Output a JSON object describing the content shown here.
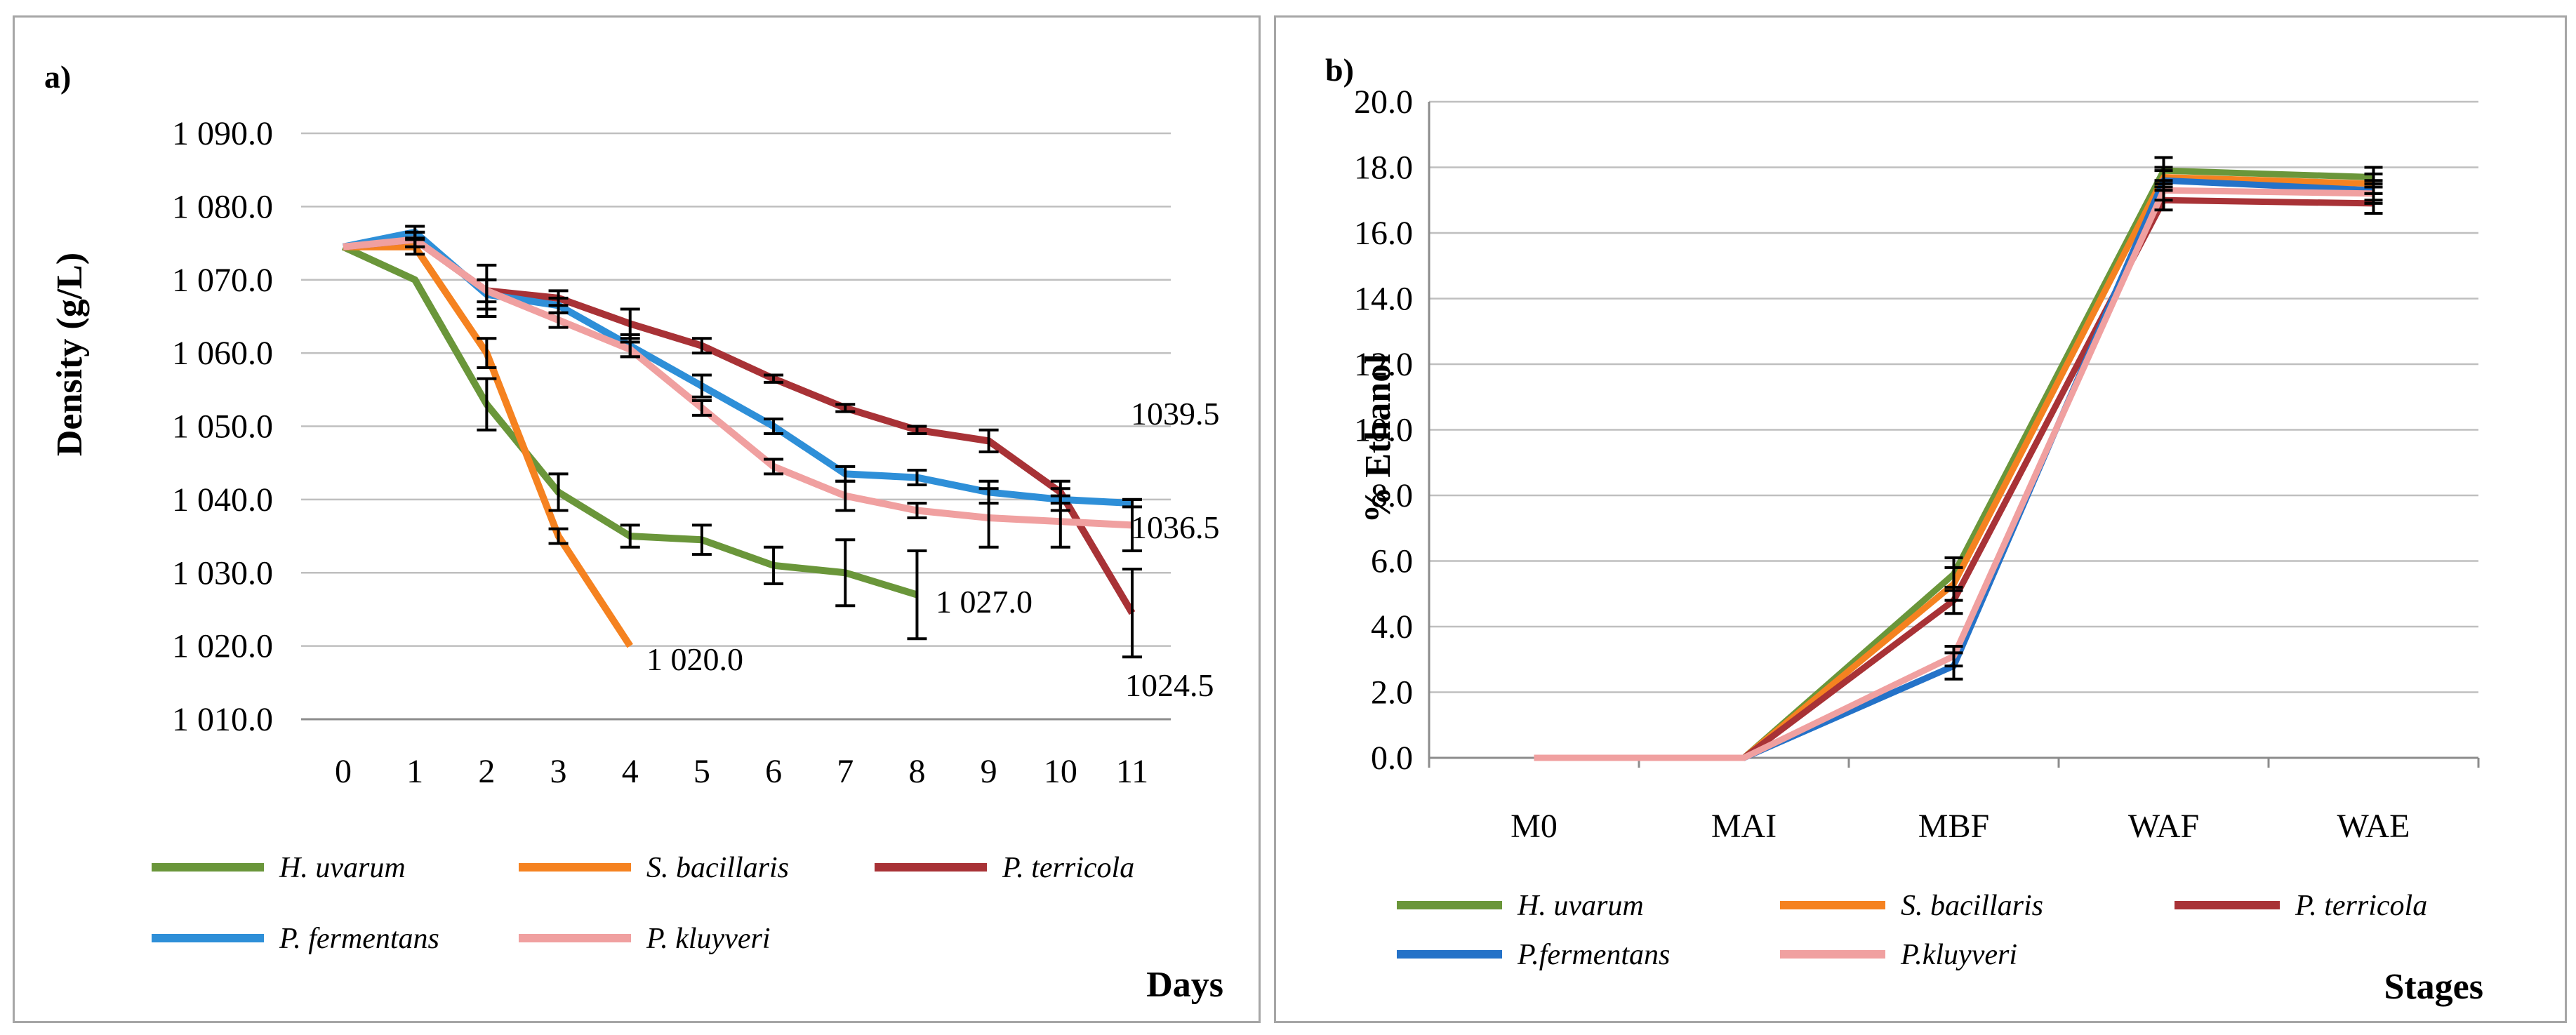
{
  "chart_data": [
    {
      "type": "line",
      "panel_label": "a)",
      "xlabel": "Days",
      "ylabel": "Density (g/L)",
      "x": [
        0,
        1,
        2,
        3,
        4,
        5,
        6,
        7,
        8,
        9,
        10,
        11
      ],
      "x_tick_labels": [
        "0",
        "1",
        "2",
        "3",
        "4",
        "5",
        "6",
        "7",
        "8",
        "9",
        "10",
        "11"
      ],
      "ylim": [
        1010,
        1090
      ],
      "y_ticks": [
        1010,
        1020,
        1030,
        1040,
        1050,
        1060,
        1070,
        1080,
        1090
      ],
      "y_tick_labels": [
        "1 010.0",
        "1 020.0",
        "1 030.0",
        "1 040.0",
        "1 050.0",
        "1 060.0",
        "1 070.0",
        "1 080.0",
        "1 090.0"
      ],
      "grid": true,
      "legend_position": "bottom",
      "series": [
        {
          "name": "H. uvarum",
          "color": "#6a963a",
          "values": [
            1074.5,
            1070,
            1053,
            1041,
            1035,
            1034.5,
            1031,
            1030,
            1027,
            null,
            null,
            null
          ],
          "errors": [
            0,
            0,
            3.5,
            2.5,
            1.5,
            2,
            2.5,
            4.5,
            6,
            null,
            null,
            null
          ]
        },
        {
          "name": "S. bacillaris",
          "color": "#f58220",
          "values": [
            1074.5,
            1074.5,
            1060,
            1035,
            1020,
            null,
            null,
            null,
            null,
            null,
            null,
            null
          ],
          "errors": [
            0,
            1,
            2,
            1,
            0,
            null,
            null,
            null,
            null,
            null,
            null,
            null
          ]
        },
        {
          "name": "P. terricola",
          "color": "#a83236",
          "values": [
            1074.5,
            1075.5,
            1068.5,
            1067.5,
            1064,
            1061,
            1056.5,
            1052.5,
            1049.5,
            1048,
            1041,
            1024.5
          ],
          "errors": [
            0,
            1,
            3.5,
            1,
            2,
            1,
            0.5,
            0.5,
            0.5,
            1.5,
            1.5,
            6
          ]
        },
        {
          "name": "P. fermentans",
          "color": "#2e8fd8",
          "values": [
            1074.5,
            1076.5,
            1068,
            1066.5,
            1061,
            1055.5,
            1050,
            1043.5,
            1043,
            1041,
            1040,
            1039.5
          ],
          "errors": [
            0,
            0.8,
            2,
            1,
            1.5,
            1.5,
            1,
            1,
            1,
            1.5,
            1.5,
            0.5
          ]
        },
        {
          "name": "P. kluyveri",
          "color": "#f0a0a0",
          "values": [
            1074.5,
            1075.5,
            1068.5,
            1064.5,
            1060.5,
            1052.5,
            1044.5,
            1040.5,
            1038.5,
            1037.5,
            1037,
            1036.5
          ],
          "errors": [
            0,
            1,
            1.5,
            1,
            1,
            1,
            1,
            2,
            1,
            4,
            3.5,
            3.5
          ]
        }
      ],
      "annotations": [
        "1 020.0",
        "1 027.0",
        "1039.5",
        "1036.5",
        "1024.5"
      ]
    },
    {
      "type": "line",
      "panel_label": "b)",
      "xlabel": "Stages",
      "ylabel": "% Ethanol",
      "categories": [
        "M0",
        "MAI",
        "MBF",
        "WAF",
        "WAE"
      ],
      "ylim": [
        0,
        20
      ],
      "y_ticks": [
        0,
        2,
        4,
        6,
        8,
        10,
        12,
        14,
        16,
        18,
        20
      ],
      "y_tick_labels": [
        "0.0",
        "2.0",
        "4.0",
        "6.0",
        "8.0",
        "10.0",
        "12.0",
        "14.0",
        "16.0",
        "18.0",
        "20.0"
      ],
      "grid": true,
      "legend_position": "bottom",
      "series": [
        {
          "name": "H. uvarum",
          "color": "#6a963a",
          "values": [
            0,
            0,
            5.6,
            17.9,
            17.7
          ],
          "errors": [
            0,
            0,
            0.5,
            0.4,
            0.3
          ]
        },
        {
          "name": "S. bacillaris",
          "color": "#f58220",
          "values": [
            0,
            0,
            5.3,
            17.7,
            17.5
          ],
          "errors": [
            0,
            0,
            0.5,
            0.3,
            0.3
          ]
        },
        {
          "name": "P. terricola",
          "color": "#a83236",
          "values": [
            0,
            0,
            4.8,
            17.0,
            16.9
          ],
          "errors": [
            0,
            0,
            0.4,
            0.3,
            0.3
          ]
        },
        {
          "name": "P.fermentans",
          "color": "#2472c8",
          "values": [
            0,
            0,
            2.8,
            17.6,
            17.3
          ],
          "errors": [
            0,
            0,
            0.4,
            0.3,
            0.3
          ]
        },
        {
          "name": "P.kluyveri",
          "color": "#f0a0a0",
          "values": [
            0,
            0,
            3.1,
            17.3,
            17.2
          ],
          "errors": [
            0,
            0,
            0.3,
            0.3,
            0.3
          ]
        }
      ]
    }
  ]
}
